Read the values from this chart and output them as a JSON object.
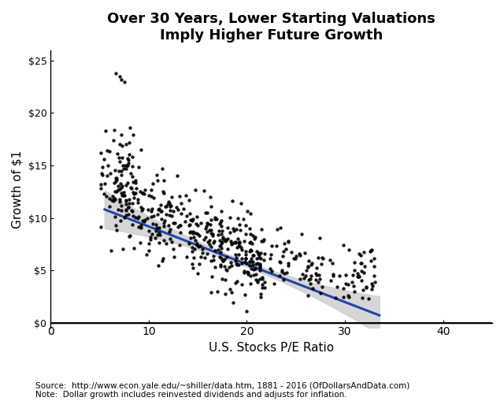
{
  "title": "Over 30 Years, Lower Starting Valuations\nImply Higher Future Growth",
  "xlabel": "U.S. Stocks P/E Ratio",
  "ylabel": "Growth of $1",
  "xlim": [
    0,
    45
  ],
  "ylim": [
    -0.5,
    26
  ],
  "yticks": [
    0,
    5,
    10,
    15,
    20,
    25
  ],
  "ytick_labels": [
    "$0",
    "$5",
    "$10",
    "$15",
    "$20",
    "$25"
  ],
  "xticks": [
    0,
    10,
    20,
    30,
    40
  ],
  "source_text": "Source:  http://www.econ.yale.edu/~shiller/data.htm, 1881 - 2016 (OfDollarsAndData.com)\nNote:  Dollar growth includes reinvested dividends and adjusts for inflation.",
  "dot_color": "#000000",
  "line_color": "#2244aa",
  "ci_color": "#cccccc",
  "background_color": "#ffffff",
  "title_fontsize": 13,
  "axis_label_fontsize": 11,
  "tick_fontsize": 9,
  "source_fontsize": 7.5,
  "seed": 42,
  "regression_x_start": 5.5,
  "regression_x_end": 33.5,
  "regression_y_start": 10.8,
  "regression_y_end": 0.7
}
